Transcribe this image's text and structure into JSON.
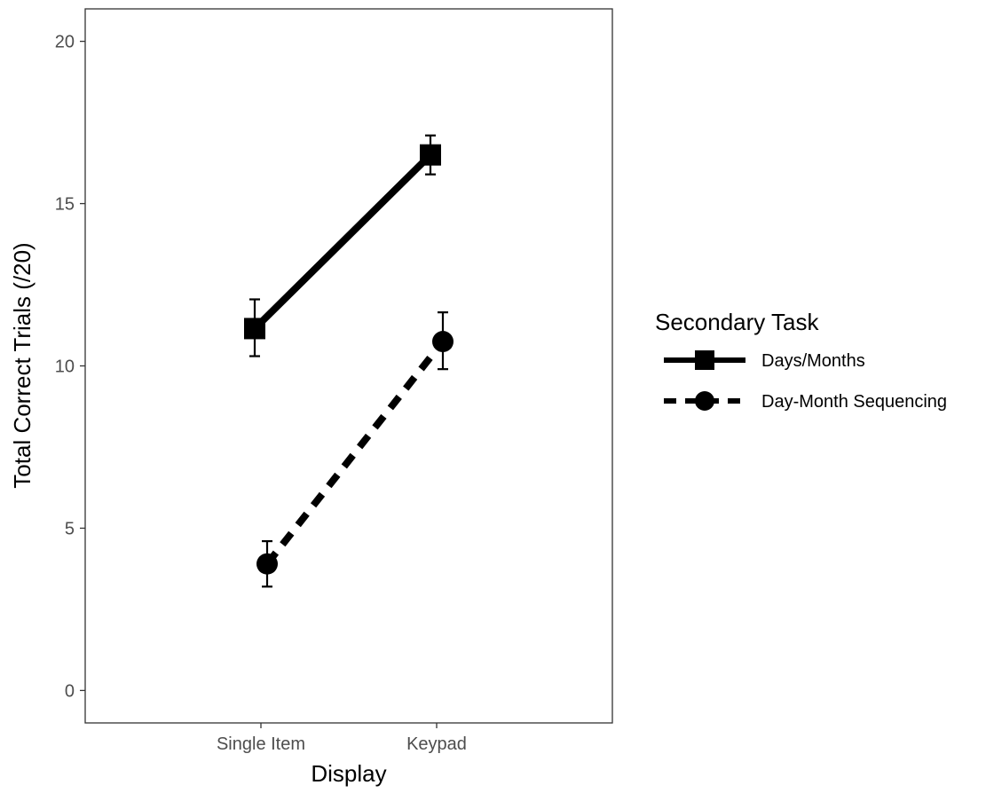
{
  "chart_data": {
    "type": "line",
    "xlabel": "Display",
    "ylabel": "Total Correct Trials (/20)",
    "categories": [
      "Single Item",
      "Keypad"
    ],
    "ylim": [
      -1,
      21
    ],
    "yticks": [
      0,
      5,
      10,
      15,
      20
    ],
    "grid": false,
    "legend": {
      "title": "Secondary Task",
      "placement": "right"
    },
    "series": [
      {
        "name": "Days/Months",
        "values": [
          11.15,
          16.5
        ],
        "error_low": [
          10.3,
          15.9
        ],
        "error_high": [
          12.05,
          17.1
        ],
        "line_style": "solid",
        "marker": "square",
        "color": "#000000"
      },
      {
        "name": "Day-Month Sequencing",
        "values": [
          3.9,
          10.75
        ],
        "error_low": [
          3.2,
          9.9
        ],
        "error_high": [
          4.6,
          11.65
        ],
        "line_style": "dashed",
        "marker": "circle",
        "color": "#000000"
      }
    ]
  }
}
